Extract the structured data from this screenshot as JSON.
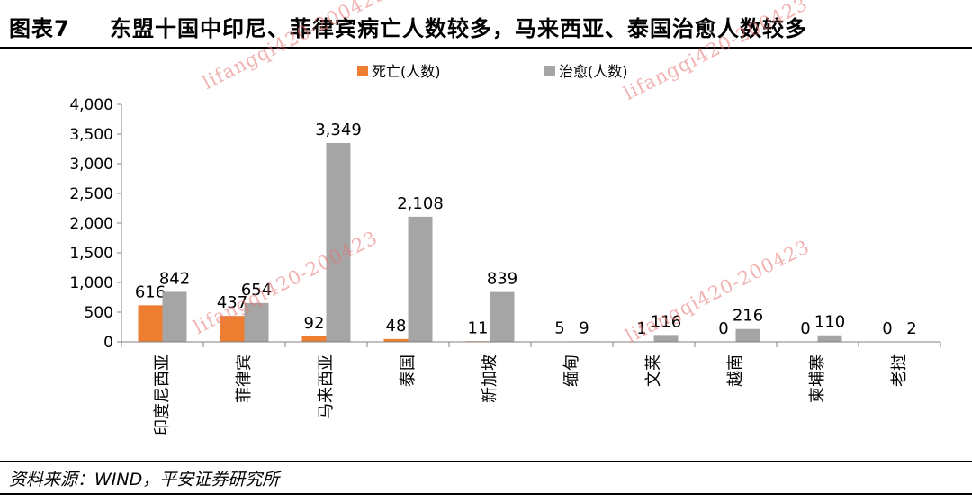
{
  "header": {
    "figure_label": "图表7",
    "title": "东盟十国中印尼、菲律宾病亡人数较多，马来西亚、泰国治愈人数较多"
  },
  "chart_data": {
    "type": "bar",
    "categories": [
      "印度尼西亚",
      "菲律宾",
      "马来西亚",
      "泰国",
      "新加坡",
      "缅甸",
      "文莱",
      "越南",
      "柬埔寨",
      "老挝"
    ],
    "series": [
      {
        "name": "死亡(人数)",
        "color": "#ED7D31",
        "values": [
          616,
          437,
          92,
          48,
          11,
          5,
          1,
          0,
          0,
          0
        ]
      },
      {
        "name": "治愈(人数)",
        "color": "#A5A5A5",
        "values": [
          842,
          654,
          3349,
          2108,
          839,
          9,
          116,
          216,
          110,
          2
        ]
      }
    ],
    "data_labels": [
      [
        "616",
        "437",
        "92",
        "48",
        "11",
        "5",
        "1",
        "0",
        "0",
        "0"
      ],
      [
        "842",
        "654",
        "3,349",
        "2,108",
        "839",
        "9",
        "116",
        "216",
        "110",
        "2"
      ]
    ],
    "ylim": [
      0,
      4000
    ],
    "yticks": [
      0,
      500,
      1000,
      1500,
      2000,
      2500,
      3000,
      3500,
      4000
    ],
    "ytick_labels": [
      "0",
      "500",
      "1,000",
      "1,500",
      "2,000",
      "2,500",
      "3,000",
      "3,500",
      "4,000"
    ],
    "grid": false,
    "legend_position": "top"
  },
  "watermark": {
    "text": "lifangqi420-200423"
  },
  "footer": {
    "source": "资料来源：WIND，平安证券研究所"
  }
}
